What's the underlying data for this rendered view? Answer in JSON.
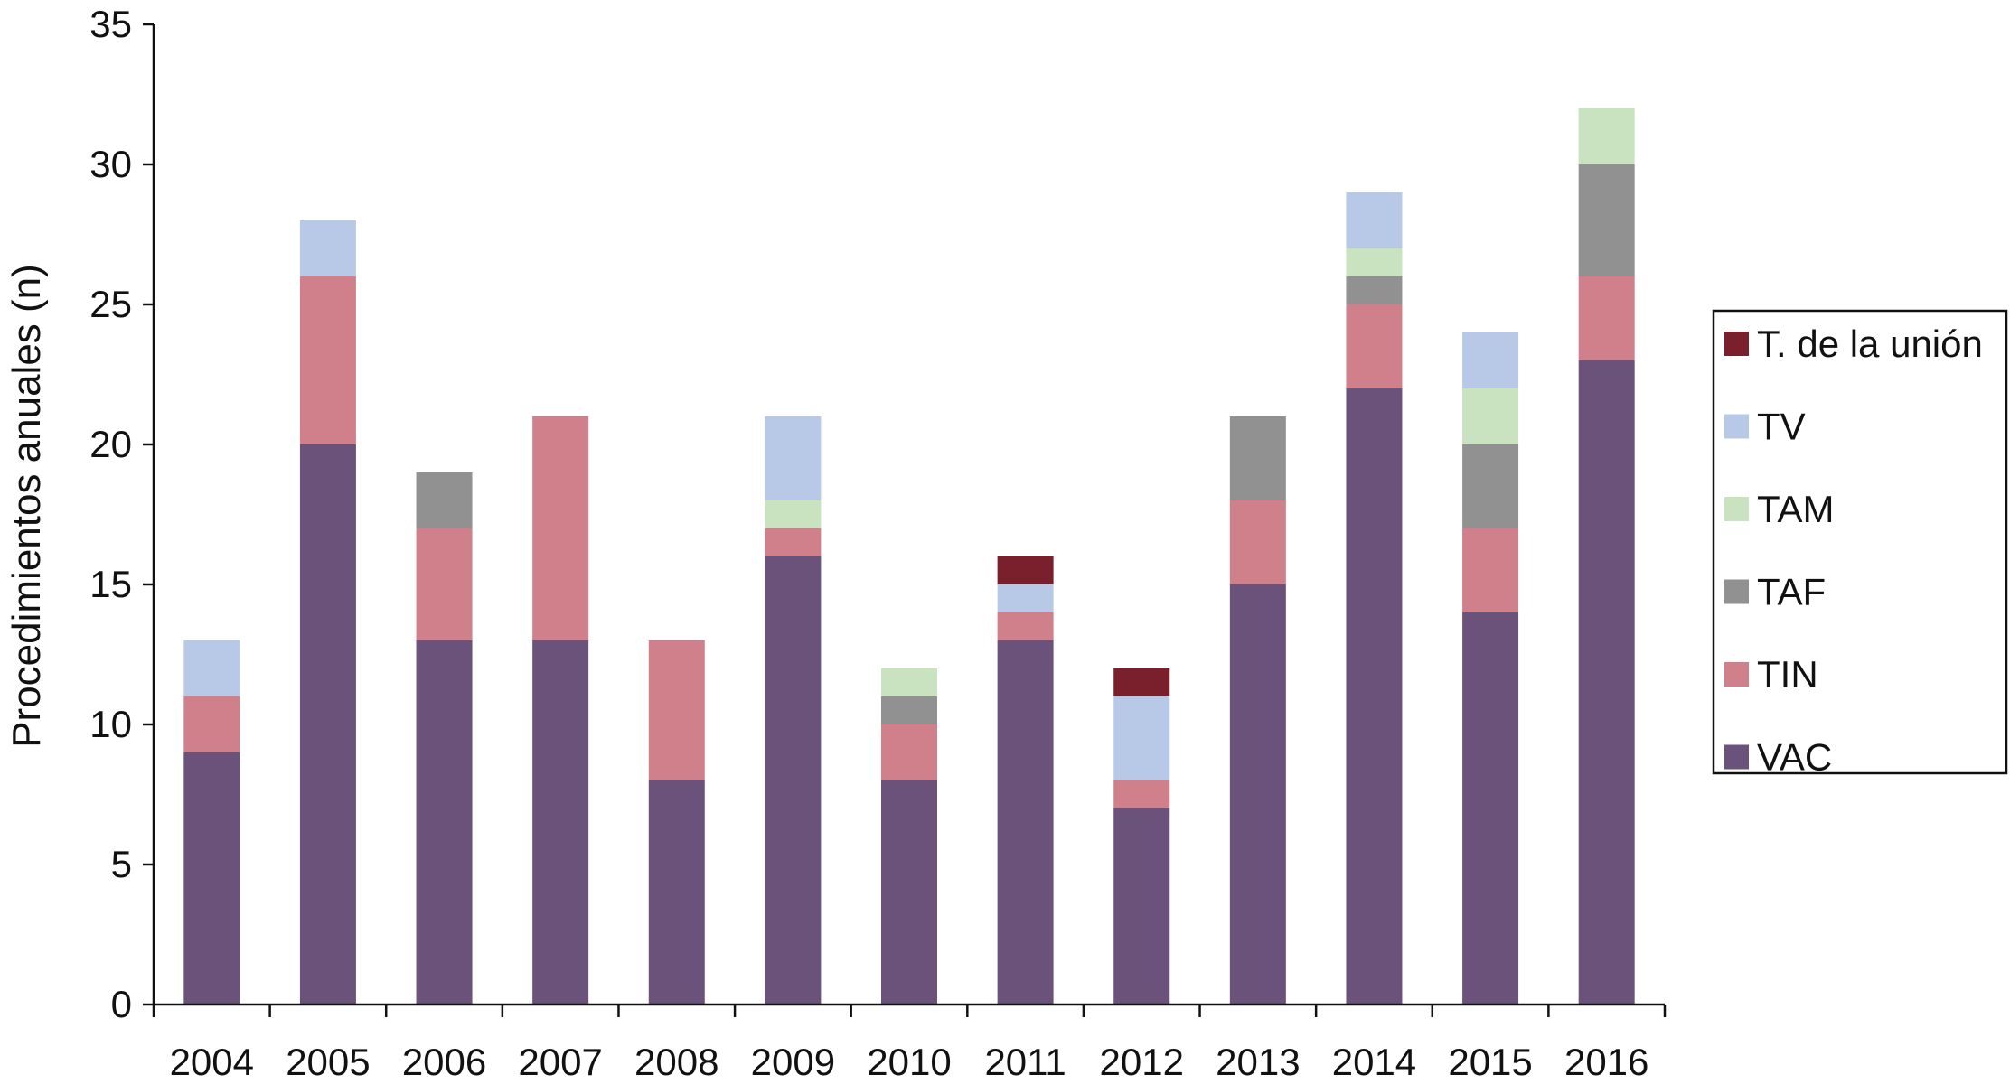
{
  "chart_data": {
    "type": "bar",
    "stacked": true,
    "ylabel": "Procedimientos anuales (n)",
    "xlabel": "",
    "ylim": [
      0,
      35
    ],
    "yticks": [
      0,
      5,
      10,
      15,
      20,
      25,
      30,
      35
    ],
    "grid": false,
    "legend_position": "right",
    "categories": [
      "2004",
      "2005",
      "2006",
      "2007",
      "2008",
      "2009",
      "2010",
      "2011",
      "2012",
      "2013",
      "2014",
      "2015",
      "2016"
    ],
    "series": [
      {
        "name": "VAC",
        "color": "#6a527a",
        "values": [
          9,
          20,
          13,
          13,
          8,
          16,
          8,
          13,
          7,
          15,
          22,
          14,
          23
        ]
      },
      {
        "name": "TIN",
        "color": "#d0808a",
        "values": [
          2,
          6,
          4,
          8,
          5,
          1,
          2,
          1,
          1,
          3,
          3,
          3,
          3
        ]
      },
      {
        "name": "TAF",
        "color": "#919191",
        "values": [
          0,
          0,
          2,
          0,
          0,
          0,
          1,
          0,
          0,
          3,
          1,
          3,
          4
        ]
      },
      {
        "name": "TAM",
        "color": "#c9e2bf",
        "values": [
          0,
          0,
          0,
          0,
          0,
          1,
          1,
          0,
          0,
          0,
          1,
          2,
          2
        ]
      },
      {
        "name": "TV",
        "color": "#b8c9e8",
        "values": [
          2,
          2,
          0,
          0,
          0,
          3,
          0,
          1,
          3,
          0,
          2,
          2,
          0
        ]
      },
      {
        "name": "T. de la unión",
        "color": "#7a1f2c",
        "values": [
          0,
          0,
          0,
          0,
          0,
          0,
          0,
          1,
          1,
          0,
          0,
          0,
          0
        ]
      }
    ]
  }
}
